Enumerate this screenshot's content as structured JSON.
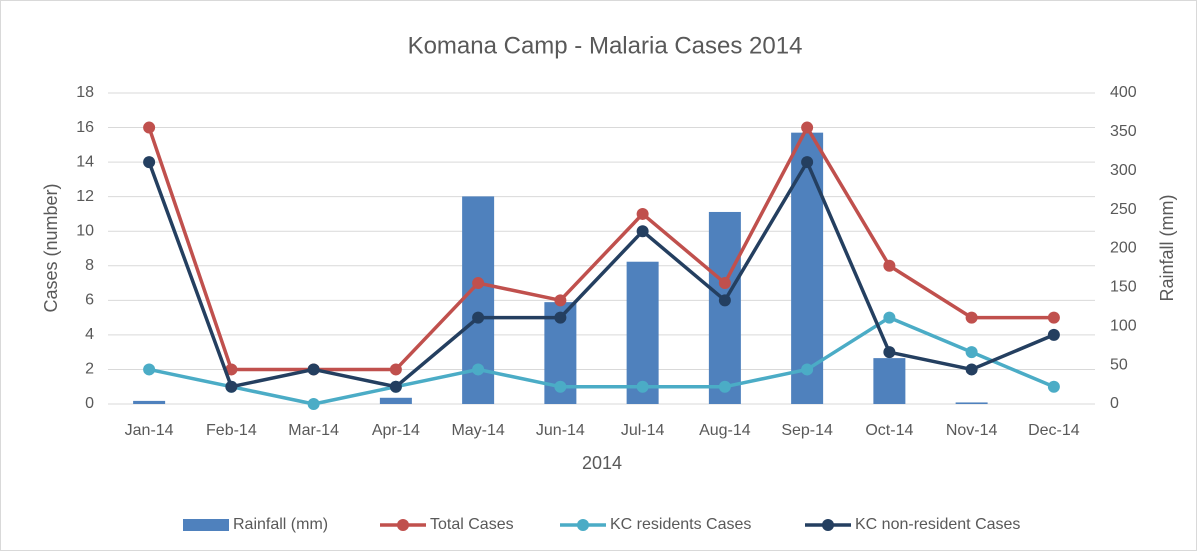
{
  "chart_data": {
    "type": "combo",
    "title": "Komana Camp - Malaria Cases 2014",
    "xlabel": "2014",
    "ylabel": "Cases (number)",
    "y2label": "Rainfall (mm)",
    "categories": [
      "Jan-14",
      "Feb-14",
      "Mar-14",
      "Apr-14",
      "May-14",
      "Jun-14",
      "Jul-14",
      "Aug-14",
      "Sep-14",
      "Oct-14",
      "Nov-14",
      "Dec-14"
    ],
    "series": [
      {
        "name": "Rainfall (mm)",
        "type": "bar",
        "axis": "y2",
        "color": "#4f81bd",
        "values": [
          4,
          0,
          0,
          8,
          267,
          131,
          183,
          247,
          349,
          59,
          2,
          0
        ]
      },
      {
        "name": "Total Cases",
        "type": "line",
        "color": "#c0504d",
        "values": [
          16,
          2,
          2,
          2,
          7,
          6,
          11,
          7,
          16,
          8,
          5,
          5
        ]
      },
      {
        "name": "KC residents Cases",
        "type": "line",
        "color": "#4bacc6",
        "values": [
          2,
          1,
          0,
          1,
          2,
          1,
          1,
          1,
          2,
          5,
          3,
          1
        ]
      },
      {
        "name": "KC non-resident Cases",
        "type": "line",
        "color": "#243f60",
        "values": [
          14,
          1,
          2,
          1,
          5,
          5,
          10,
          6,
          14,
          3,
          2,
          4
        ]
      }
    ],
    "ylim": [
      0,
      18
    ],
    "yticks": [
      0,
      2,
      4,
      6,
      8,
      10,
      12,
      14,
      16,
      18
    ],
    "y2lim": [
      0,
      400
    ],
    "y2ticks": [
      0,
      50,
      100,
      150,
      200,
      250,
      300,
      350,
      400
    ],
    "grid": true,
    "legend": "bottom"
  }
}
